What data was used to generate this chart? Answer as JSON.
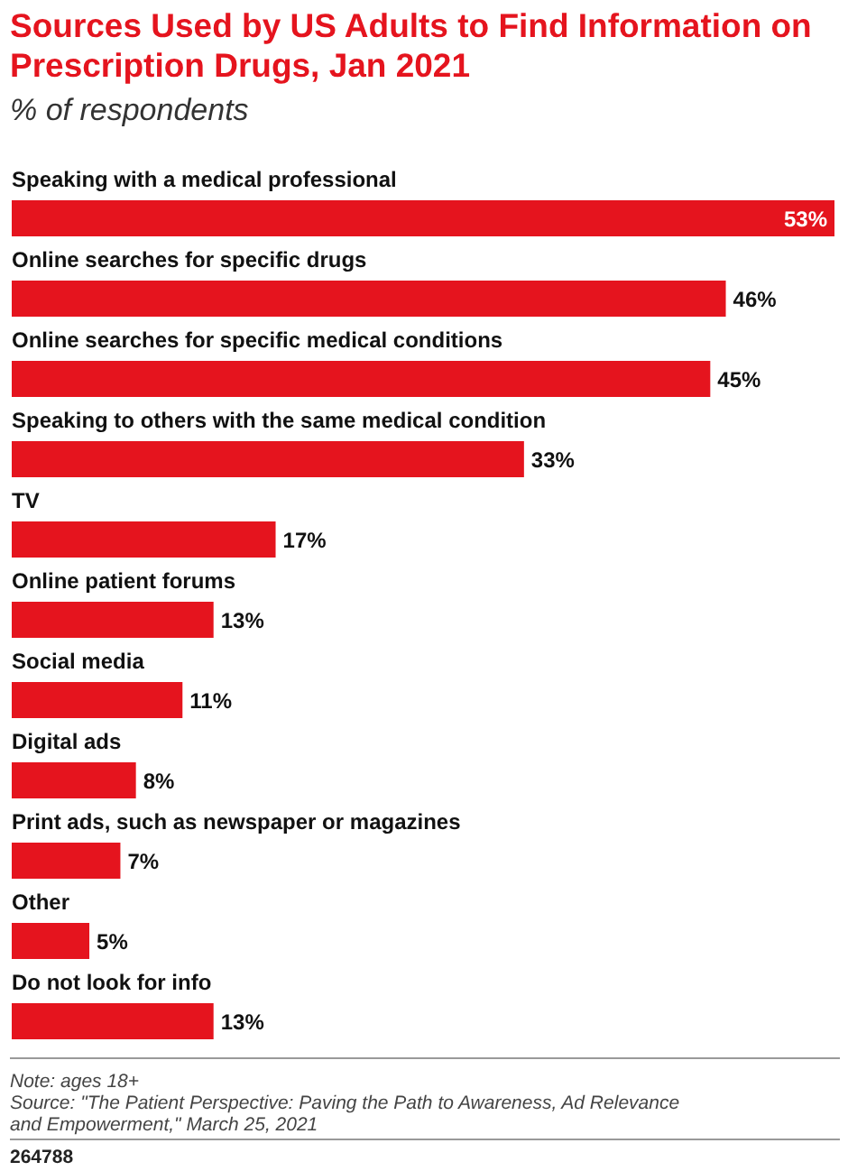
{
  "chart_data": {
    "type": "bar",
    "orientation": "horizontal",
    "title": "Sources Used by US Adults to Find Information on Prescription Drugs, Jan 2021",
    "subtitle": "% of respondents",
    "categories": [
      "Speaking with a medical professional",
      "Online searches for specific drugs",
      "Online searches for specific medical conditions",
      "Speaking to others with the same medical condition",
      "TV",
      "Online patient forums",
      "Social media",
      "Digital ads",
      "Print ads, such as newspaper or magazines",
      "Other",
      "Do not look for info"
    ],
    "values": [
      53,
      46,
      45,
      33,
      17,
      13,
      11,
      8,
      7,
      5,
      13
    ],
    "color": "#e5141e",
    "value_labels": [
      "53%",
      "46%",
      "45%",
      "33%",
      "17%",
      "13%",
      "11%",
      "8%",
      "7%",
      "5%",
      "13%"
    ],
    "annotations": [
      "Note: ages 18+",
      "Source: \"The Patient Perspective: Paving the Path to Awareness, Ad Relevance and Empowerment,\" March 25, 2021",
      "264788"
    ]
  }
}
